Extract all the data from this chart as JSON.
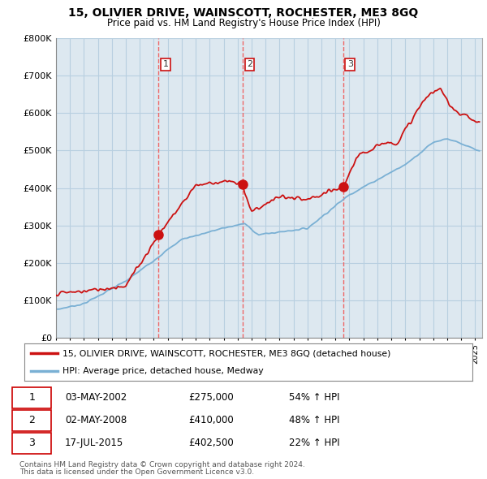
{
  "title": "15, OLIVIER DRIVE, WAINSCOTT, ROCHESTER, ME3 8GQ",
  "subtitle": "Price paid vs. HM Land Registry's House Price Index (HPI)",
  "ylim": [
    0,
    800000
  ],
  "yticks": [
    0,
    100000,
    200000,
    300000,
    400000,
    500000,
    600000,
    700000,
    800000
  ],
  "background_color": "#ffffff",
  "plot_bg_color": "#dde8f0",
  "grid_color": "#b8cfe0",
  "purchase_dates": [
    2002.34,
    2008.34,
    2015.54
  ],
  "purchase_prices": [
    275000,
    410000,
    402500
  ],
  "purchase_labels_info": [
    {
      "label": "1",
      "date": "03-MAY-2002",
      "price": "£275,000",
      "pct": "54% ↑ HPI"
    },
    {
      "label": "2",
      "date": "02-MAY-2008",
      "price": "£410,000",
      "pct": "48% ↑ HPI"
    },
    {
      "label": "3",
      "date": "17-JUL-2015",
      "price": "£402,500",
      "pct": "22% ↑ HPI"
    }
  ],
  "legend_line1": "15, OLIVIER DRIVE, WAINSCOTT, ROCHESTER, ME3 8GQ (detached house)",
  "legend_line2": "HPI: Average price, detached house, Medway",
  "footer1": "Contains HM Land Registry data © Crown copyright and database right 2024.",
  "footer2": "This data is licensed under the Open Government Licence v3.0.",
  "house_color": "#cc1111",
  "hpi_color": "#7ab0d4",
  "vline_color": "#ee6666",
  "dot_color": "#cc1111",
  "number_box_color": "#cc1111",
  "xstart": 1995,
  "xend": 2025.5
}
